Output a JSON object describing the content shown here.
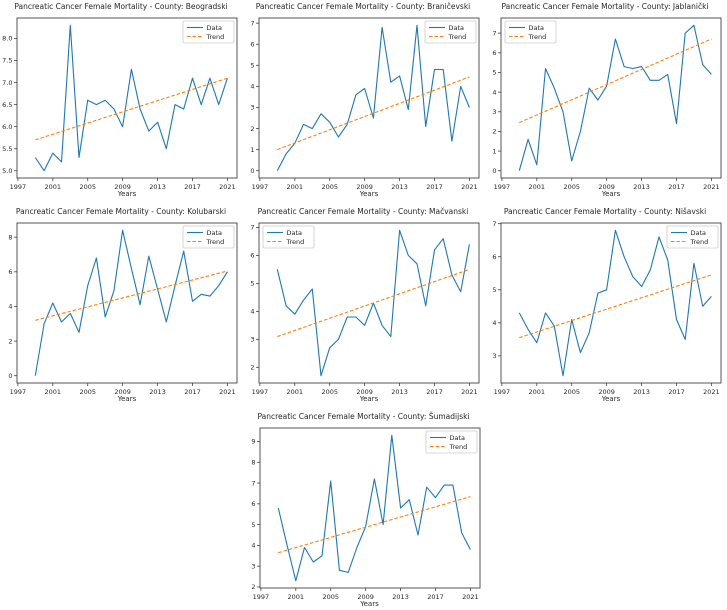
{
  "colors": {
    "data": "#1f77b4",
    "trend": "#ff7f0e",
    "axis": "#444444",
    "tick_text": "#262626",
    "legend_border": "#cccccc",
    "background": "#ffffff"
  },
  "legend": {
    "data_label": "Data",
    "trend_label": "Trend"
  },
  "chart_data": [
    {
      "type": "line",
      "title": "Pancreatic Cancer Female Mortality - County: Beogradski",
      "xlabel": "Years",
      "x": [
        1999,
        2000,
        2001,
        2002,
        2003,
        2004,
        2005,
        2006,
        2007,
        2008,
        2009,
        2010,
        2011,
        2012,
        2013,
        2014,
        2015,
        2016,
        2017,
        2018,
        2019,
        2020,
        2021
      ],
      "series": [
        {
          "name": "Data",
          "line_style": "solid",
          "color_key": "data",
          "values": [
            5.3,
            5.0,
            5.4,
            5.2,
            8.3,
            5.3,
            6.6,
            6.5,
            6.6,
            6.4,
            6.0,
            7.3,
            6.4,
            5.9,
            6.1,
            5.5,
            6.5,
            6.4,
            7.1,
            6.5,
            7.1,
            6.5,
            7.1
          ]
        },
        {
          "name": "Trend",
          "line_style": "dashed",
          "color_key": "trend",
          "x": [
            1999,
            2021
          ],
          "values": [
            5.7,
            7.1
          ]
        }
      ],
      "xlim": [
        1996.9,
        2022.1
      ],
      "ylim": [
        4.835,
        8.465
      ],
      "xticks": [
        1997,
        2001,
        2005,
        2009,
        2013,
        2017,
        2021
      ],
      "yticks": [
        "5.0",
        "5.5",
        "6.0",
        "6.5",
        "7.0",
        "7.5",
        "8.0"
      ],
      "legend_loc": "upper right"
    },
    {
      "type": "line",
      "title": "Pancreatic Cancer Female Mortality - County: Braničevski",
      "xlabel": "Years",
      "x": [
        1999,
        2000,
        2001,
        2002,
        2003,
        2004,
        2005,
        2006,
        2007,
        2008,
        2009,
        2010,
        2011,
        2012,
        2013,
        2014,
        2015,
        2016,
        2017,
        2018,
        2019,
        2020,
        2021
      ],
      "series": [
        {
          "name": "Data",
          "line_style": "solid",
          "color_key": "data",
          "values": [
            0.0,
            0.8,
            1.3,
            2.2,
            2.0,
            2.7,
            2.3,
            1.6,
            2.2,
            3.6,
            3.9,
            2.5,
            6.8,
            4.2,
            4.5,
            2.9,
            6.9,
            2.1,
            4.8,
            4.8,
            1.4,
            4.0,
            3.0
          ]
        },
        {
          "name": "Trend",
          "line_style": "dashed",
          "color_key": "trend",
          "x": [
            1999,
            2021
          ],
          "values": [
            1.0,
            4.45
          ]
        }
      ],
      "xlim": [
        1996.9,
        2022.1
      ],
      "ylim": [
        -0.345,
        7.245
      ],
      "xticks": [
        1997,
        2001,
        2005,
        2009,
        2013,
        2017,
        2021
      ],
      "yticks": [
        "0",
        "1",
        "2",
        "3",
        "4",
        "5",
        "6",
        "7"
      ],
      "legend_loc": "upper right"
    },
    {
      "type": "line",
      "title": "Pancreatic Cancer Female Mortality - County: Jablanički",
      "xlabel": "Years",
      "x": [
        1999,
        2000,
        2001,
        2002,
        2003,
        2004,
        2005,
        2006,
        2007,
        2008,
        2009,
        2010,
        2011,
        2012,
        2013,
        2014,
        2015,
        2016,
        2017,
        2018,
        2019,
        2020,
        2021
      ],
      "series": [
        {
          "name": "Data",
          "line_style": "solid",
          "color_key": "data",
          "values": [
            0.0,
            1.6,
            0.3,
            5.2,
            4.2,
            3.0,
            0.5,
            2.0,
            4.2,
            3.6,
            4.3,
            6.7,
            5.3,
            5.2,
            5.3,
            4.6,
            4.6,
            4.9,
            2.4,
            7.0,
            7.4,
            5.4,
            4.9
          ]
        },
        {
          "name": "Trend",
          "line_style": "dashed",
          "color_key": "trend",
          "x": [
            1999,
            2021
          ],
          "values": [
            2.45,
            6.7
          ]
        }
      ],
      "xlim": [
        1996.9,
        2022.1
      ],
      "ylim": [
        -0.37,
        7.77
      ],
      "xticks": [
        1997,
        2001,
        2005,
        2009,
        2013,
        2017,
        2021
      ],
      "yticks": [
        "0",
        "1",
        "2",
        "3",
        "4",
        "5",
        "6",
        "7"
      ],
      "legend_loc": "upper left"
    },
    {
      "type": "line",
      "title": "Pancreatic Cancer Female Mortality - County: Kolubarski",
      "xlabel": "Years",
      "x": [
        1999,
        2000,
        2001,
        2002,
        2003,
        2004,
        2005,
        2006,
        2007,
        2008,
        2009,
        2010,
        2011,
        2012,
        2013,
        2014,
        2015,
        2016,
        2017,
        2018,
        2019,
        2020,
        2021
      ],
      "series": [
        {
          "name": "Data",
          "line_style": "solid",
          "color_key": "data",
          "values": [
            0.0,
            3.0,
            4.2,
            3.1,
            3.6,
            2.5,
            5.2,
            6.8,
            3.4,
            4.9,
            8.4,
            6.2,
            4.1,
            6.9,
            5.0,
            3.1,
            5.2,
            7.2,
            4.3,
            4.7,
            4.6,
            5.2,
            6.0
          ]
        },
        {
          "name": "Trend",
          "line_style": "dashed",
          "color_key": "trend",
          "x": [
            1999,
            2021
          ],
          "values": [
            3.2,
            6.05
          ]
        }
      ],
      "xlim": [
        1996.9,
        2022.1
      ],
      "ylim": [
        -0.42,
        8.82
      ],
      "xticks": [
        1997,
        2001,
        2005,
        2009,
        2013,
        2017,
        2021
      ],
      "yticks": [
        "0",
        "2",
        "4",
        "6",
        "8"
      ],
      "legend_loc": "upper right"
    },
    {
      "type": "line",
      "title": "Pancreatic Cancer Female Mortality - County: Mačvanski",
      "xlabel": "Years",
      "x": [
        1999,
        2000,
        2001,
        2002,
        2003,
        2004,
        2005,
        2006,
        2007,
        2008,
        2009,
        2010,
        2011,
        2012,
        2013,
        2014,
        2015,
        2016,
        2017,
        2018,
        2019,
        2020,
        2021
      ],
      "series": [
        {
          "name": "Data",
          "line_style": "solid",
          "color_key": "data",
          "values": [
            5.5,
            4.2,
            3.9,
            4.4,
            4.8,
            1.7,
            2.7,
            3.0,
            3.8,
            3.8,
            3.5,
            4.3,
            3.5,
            3.1,
            6.9,
            6.0,
            5.7,
            4.2,
            6.2,
            6.6,
            5.3,
            4.7,
            6.4
          ]
        },
        {
          "name": "Trend",
          "line_style": "dashed",
          "color_key": "trend",
          "x": [
            1999,
            2021
          ],
          "values": [
            3.1,
            5.5
          ]
        }
      ],
      "xlim": [
        1996.9,
        2022.1
      ],
      "ylim": [
        1.44,
        7.16
      ],
      "xticks": [
        1997,
        2001,
        2005,
        2009,
        2013,
        2017,
        2021
      ],
      "yticks": [
        "2",
        "3",
        "4",
        "5",
        "6",
        "7"
      ],
      "legend_loc": "upper left"
    },
    {
      "type": "line",
      "title": "Pancreatic Cancer Female Mortality - County: Nišavski",
      "xlabel": "Years",
      "x": [
        1999,
        2000,
        2001,
        2002,
        2003,
        2004,
        2005,
        2006,
        2007,
        2008,
        2009,
        2010,
        2011,
        2012,
        2013,
        2014,
        2015,
        2016,
        2017,
        2018,
        2019,
        2020,
        2021
      ],
      "series": [
        {
          "name": "Data",
          "line_style": "solid",
          "color_key": "data",
          "values": [
            4.3,
            3.8,
            3.4,
            4.3,
            3.9,
            2.4,
            4.1,
            3.1,
            3.7,
            4.9,
            5.0,
            6.8,
            6.0,
            5.4,
            5.1,
            5.6,
            6.6,
            5.9,
            4.1,
            3.5,
            5.8,
            4.5,
            4.8
          ]
        },
        {
          "name": "Trend",
          "line_style": "dashed",
          "color_key": "trend",
          "x": [
            1999,
            2021
          ],
          "values": [
            3.55,
            5.45
          ]
        }
      ],
      "xlim": [
        1996.9,
        2022.1
      ],
      "ylim": [
        2.18,
        7.02
      ],
      "xticks": [
        1997,
        2001,
        2005,
        2009,
        2013,
        2017,
        2021
      ],
      "yticks": [
        "3",
        "4",
        "5",
        "6",
        "7"
      ],
      "legend_loc": "upper right"
    },
    {
      "type": "line",
      "title": "Pancreatic Cancer Female Mortality - County: Šumadijski",
      "xlabel": "Years",
      "x": [
        1999,
        2000,
        2001,
        2002,
        2003,
        2004,
        2005,
        2006,
        2007,
        2008,
        2009,
        2010,
        2011,
        2012,
        2013,
        2014,
        2015,
        2016,
        2017,
        2018,
        2019,
        2020,
        2021
      ],
      "series": [
        {
          "name": "Data",
          "line_style": "solid",
          "color_key": "data",
          "values": [
            5.8,
            4.0,
            2.3,
            3.9,
            3.2,
            3.5,
            7.1,
            2.8,
            2.7,
            3.9,
            4.9,
            7.2,
            5.0,
            9.3,
            5.8,
            6.2,
            4.5,
            6.8,
            6.3,
            6.9,
            6.9,
            4.6,
            3.8
          ]
        },
        {
          "name": "Trend",
          "line_style": "dashed",
          "color_key": "trend",
          "x": [
            1999,
            2021
          ],
          "values": [
            3.65,
            6.35
          ]
        }
      ],
      "xlim": [
        1996.9,
        2022.1
      ],
      "ylim": [
        1.95,
        9.65
      ],
      "xticks": [
        1997,
        2001,
        2005,
        2009,
        2013,
        2017,
        2021
      ],
      "yticks": [
        "2",
        "3",
        "4",
        "5",
        "6",
        "7",
        "8",
        "9"
      ],
      "legend_loc": "upper right"
    }
  ]
}
